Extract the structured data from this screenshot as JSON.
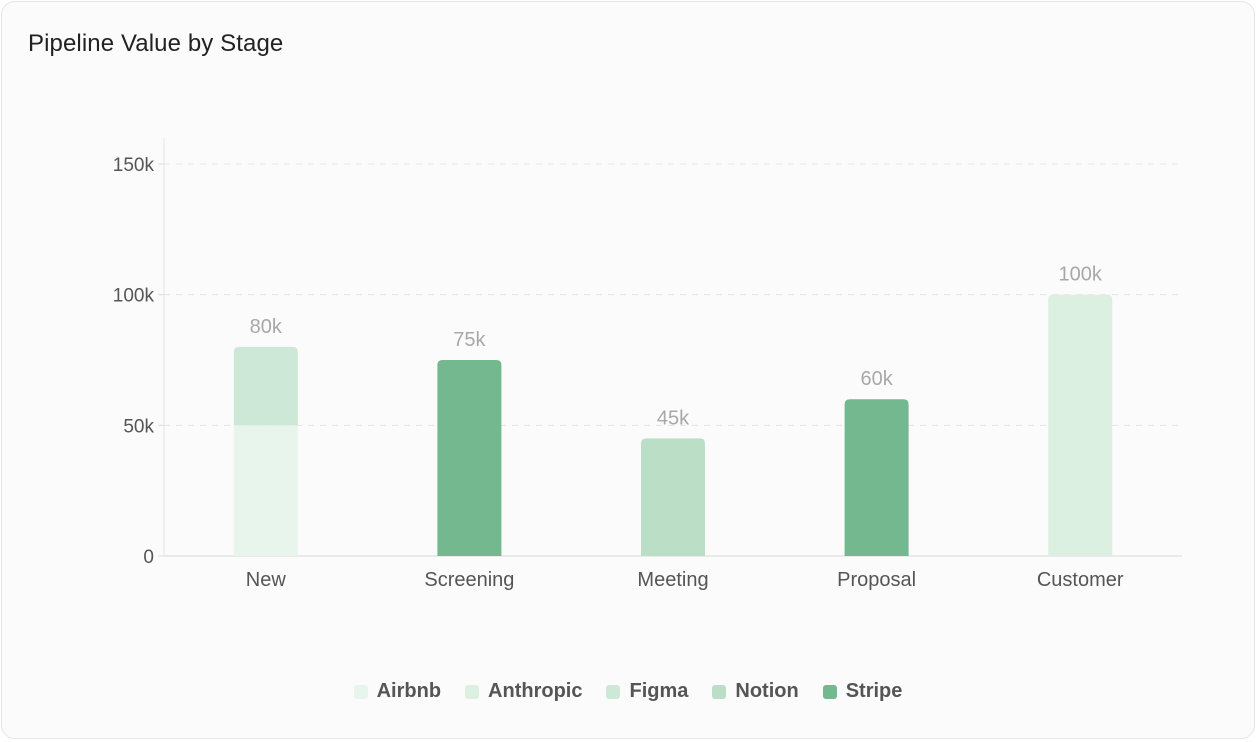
{
  "title": "Pipeline Value by Stage",
  "chart_data": {
    "type": "bar",
    "stacked": true,
    "categories": [
      "New",
      "Screening",
      "Meeting",
      "Proposal",
      "Customer"
    ],
    "series": [
      {
        "name": "Airbnb",
        "color": "#e8f5ec",
        "values": [
          50000,
          0,
          0,
          0,
          0
        ]
      },
      {
        "name": "Anthropic",
        "color": "#dcf0e2",
        "values": [
          0,
          0,
          0,
          0,
          100000
        ]
      },
      {
        "name": "Figma",
        "color": "#cde8d6",
        "values": [
          30000,
          0,
          0,
          0,
          0
        ]
      },
      {
        "name": "Notion",
        "color": "#bbdfc6",
        "values": [
          0,
          0,
          45000,
          0,
          0
        ]
      },
      {
        "name": "Stripe",
        "color": "#73b88e",
        "values": [
          0,
          75000,
          0,
          60000,
          0
        ]
      }
    ],
    "totals": [
      "80k",
      "75k",
      "45k",
      "60k",
      "100k"
    ],
    "ylim": [
      0,
      150000
    ],
    "yticks": [
      0,
      50000,
      100000,
      150000
    ],
    "ytick_labels": [
      "0",
      "50k",
      "100k",
      "150k"
    ],
    "grid": true,
    "legend_position": "bottom"
  }
}
